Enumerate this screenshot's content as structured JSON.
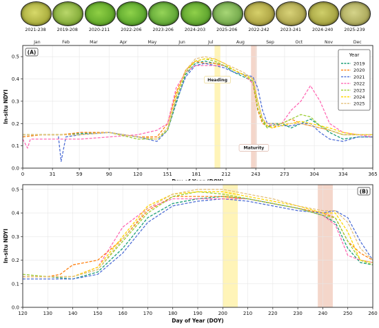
{
  "photos": [
    {
      "label": "2021-238",
      "c1": "#d7d96a",
      "c2": "#a6a93a"
    },
    {
      "label": "2019-208",
      "c1": "#b9d76a",
      "c2": "#7fa835"
    },
    {
      "label": "2020-211",
      "c1": "#8fcf45",
      "c2": "#5fa628"
    },
    {
      "label": "2022-206",
      "c1": "#8ed24a",
      "c2": "#58a42a"
    },
    {
      "label": "2023-206",
      "c1": "#95d458",
      "c2": "#5ba232"
    },
    {
      "label": "2024-203",
      "c1": "#8fd04a",
      "c2": "#5aa02c"
    },
    {
      "label": "2025-206",
      "c1": "#a7d676",
      "c2": "#6fa548"
    },
    {
      "label": "2022-242",
      "c1": "#d6d06a",
      "c2": "#a9a040"
    },
    {
      "label": "2023-241",
      "c1": "#d8d278",
      "c2": "#aaa24a"
    },
    {
      "label": "2024-240",
      "c1": "#cfcf6a",
      "c2": "#a3a03e"
    },
    {
      "label": "2025-239",
      "c1": "#d5d48a",
      "c2": "#a9a658"
    }
  ],
  "colors": {
    "2019": "#1b9e77",
    "2020": "#ff7f0e",
    "2021": "#4f6fd6",
    "2022": "#ff69b4",
    "2023": "#9acd32",
    "2024": "#ffd700",
    "2025": "#e5c07b"
  },
  "chart_data": [
    {
      "type": "line",
      "panel_label": "(A)",
      "xlabel": "Day of Year (DOY)",
      "ylabel": "In-situ NDYI",
      "xlim": [
        0,
        365
      ],
      "ylim": [
        0.0,
        0.55
      ],
      "x_ticks": [
        0,
        31,
        59,
        90,
        120,
        151,
        181,
        212,
        243,
        273,
        304,
        334,
        365
      ],
      "y_ticks": [
        0.0,
        0.1,
        0.2,
        0.3,
        0.4,
        0.5
      ],
      "months": [
        {
          "label": "Jan",
          "doy": 15
        },
        {
          "label": "Feb",
          "doy": 45
        },
        {
          "label": "Mar",
          "doy": 74
        },
        {
          "label": "Apr",
          "doy": 105
        },
        {
          "label": "May",
          "doy": 135
        },
        {
          "label": "Jun",
          "doy": 166
        },
        {
          "label": "Jul",
          "doy": 196
        },
        {
          "label": "Aug",
          "doy": 227
        },
        {
          "label": "Sep",
          "doy": 258
        },
        {
          "label": "Oct",
          "doy": 288
        },
        {
          "label": "Nov",
          "doy": 319
        },
        {
          "label": "Dec",
          "doy": 349
        }
      ],
      "legend_title": "Year",
      "legend_position": "top-right",
      "bands": [
        {
          "label": "Heading",
          "from": 200,
          "to": 206,
          "color": "#fff3b0",
          "label_y": 0.39
        },
        {
          "label": "Maturity",
          "from": 238,
          "to": 244,
          "color": "#f3d1c4",
          "label_y": 0.085
        }
      ],
      "series": [
        {
          "name": "2019",
          "x": [
            0,
            20,
            40,
            60,
            90,
            120,
            140,
            151,
            160,
            170,
            180,
            190,
            200,
            210,
            220,
            230,
            240,
            245,
            250,
            255,
            260,
            270,
            280,
            290,
            300,
            310,
            320,
            334,
            350,
            365
          ],
          "y": [
            0.15,
            0.15,
            0.15,
            0.155,
            0.16,
            0.14,
            0.13,
            0.17,
            0.29,
            0.42,
            0.47,
            0.48,
            0.47,
            0.46,
            0.43,
            0.41,
            0.39,
            0.3,
            0.22,
            0.18,
            0.2,
            0.2,
            0.18,
            0.2,
            0.22,
            0.19,
            0.16,
            0.13,
            0.14,
            0.14
          ]
        },
        {
          "name": "2020",
          "x": [
            0,
            20,
            40,
            60,
            90,
            120,
            140,
            151,
            160,
            170,
            180,
            190,
            200,
            210,
            220,
            230,
            240,
            245,
            250,
            255,
            260,
            270,
            280,
            290,
            300,
            310,
            320,
            334,
            350,
            365
          ],
          "y": [
            0.14,
            0.15,
            0.15,
            0.16,
            0.16,
            0.14,
            0.14,
            0.2,
            0.34,
            0.44,
            0.48,
            0.47,
            0.47,
            0.46,
            0.44,
            0.42,
            0.38,
            0.26,
            0.2,
            0.19,
            0.18,
            0.2,
            0.22,
            0.2,
            0.19,
            0.18,
            0.17,
            0.15,
            0.15,
            0.15
          ]
        },
        {
          "name": "2021",
          "x": [
            0,
            20,
            37,
            40,
            45,
            60,
            90,
            120,
            140,
            151,
            160,
            170,
            180,
            190,
            200,
            210,
            220,
            230,
            240,
            245,
            250,
            255,
            260,
            270,
            280,
            290,
            300,
            310,
            320,
            334,
            350,
            365
          ],
          "y": [
            0.15,
            0.15,
            0.15,
            0.03,
            0.14,
            0.15,
            0.16,
            0.14,
            0.12,
            0.17,
            0.3,
            0.41,
            0.46,
            0.47,
            0.46,
            0.45,
            0.43,
            0.42,
            0.41,
            0.36,
            0.26,
            0.2,
            0.2,
            0.19,
            0.19,
            0.2,
            0.2,
            0.16,
            0.13,
            0.12,
            0.14,
            0.14
          ]
        },
        {
          "name": "2022",
          "x": [
            0,
            5,
            8,
            15,
            30,
            45,
            60,
            90,
            120,
            140,
            151,
            160,
            170,
            180,
            190,
            200,
            210,
            220,
            230,
            240,
            245,
            250,
            255,
            260,
            270,
            280,
            290,
            300,
            310,
            320,
            334,
            350,
            365
          ],
          "y": [
            0.13,
            0.09,
            0.13,
            0.13,
            0.13,
            0.13,
            0.13,
            0.14,
            0.15,
            0.17,
            0.2,
            0.36,
            0.43,
            0.46,
            0.46,
            0.46,
            0.46,
            0.44,
            0.42,
            0.38,
            0.3,
            0.22,
            0.2,
            0.19,
            0.2,
            0.26,
            0.3,
            0.37,
            0.3,
            0.2,
            0.16,
            0.15,
            0.14
          ]
        },
        {
          "name": "2023",
          "x": [
            0,
            20,
            40,
            60,
            90,
            120,
            140,
            151,
            160,
            170,
            180,
            190,
            200,
            210,
            220,
            230,
            240,
            245,
            250,
            255,
            260,
            270,
            280,
            290,
            300,
            310,
            320,
            334,
            350,
            365
          ],
          "y": [
            0.15,
            0.15,
            0.15,
            0.15,
            0.16,
            0.13,
            0.13,
            0.17,
            0.31,
            0.43,
            0.48,
            0.49,
            0.48,
            0.46,
            0.44,
            0.42,
            0.39,
            0.27,
            0.21,
            0.18,
            0.19,
            0.2,
            0.22,
            0.24,
            0.23,
            0.19,
            0.17,
            0.15,
            0.15,
            0.15
          ]
        },
        {
          "name": "2024",
          "x": [
            0,
            20,
            40,
            60,
            90,
            120,
            140,
            151,
            160,
            170,
            180,
            190,
            200,
            210,
            220,
            230,
            240,
            245,
            250,
            255,
            260,
            270,
            280,
            290,
            300,
            310,
            320,
            334,
            350,
            365
          ],
          "y": [
            0.15,
            0.15,
            0.15,
            0.15,
            0.16,
            0.14,
            0.13,
            0.18,
            0.33,
            0.44,
            0.48,
            0.49,
            0.49,
            0.47,
            0.44,
            0.42,
            0.4,
            0.3,
            0.22,
            0.19,
            0.18,
            0.19,
            0.2,
            0.21,
            0.2,
            0.19,
            0.18,
            0.16,
            0.15,
            0.15
          ]
        },
        {
          "name": "2025",
          "x": [
            0,
            20,
            40,
            60,
            90,
            120,
            140,
            151,
            160,
            170,
            180,
            190,
            200,
            210,
            220,
            230,
            240,
            245,
            250,
            255,
            260,
            270,
            280,
            290,
            300,
            310,
            320,
            334,
            350,
            365
          ],
          "y": [
            0.15,
            0.15,
            0.15,
            0.15,
            0.16,
            0.14,
            0.13,
            0.18,
            0.32,
            0.44,
            0.49,
            0.5,
            0.49,
            0.47,
            0.45,
            0.43,
            0.4,
            0.3,
            0.22,
            0.2,
            0.2,
            0.2,
            0.2,
            0.2,
            0.19,
            0.18,
            0.17,
            0.15,
            0.15,
            0.15
          ]
        }
      ]
    },
    {
      "type": "line",
      "panel_label": "(B)",
      "xlabel": "Day of Year (DOY)",
      "ylabel": "In-situ NDYI",
      "xlim": [
        120,
        260
      ],
      "ylim": [
        0.0,
        0.52
      ],
      "x_ticks": [
        120,
        130,
        140,
        150,
        160,
        170,
        180,
        190,
        200,
        210,
        220,
        230,
        240,
        250,
        260
      ],
      "y_ticks": [
        0.0,
        0.1,
        0.2,
        0.3,
        0.4,
        0.5
      ],
      "bands": [
        {
          "from": 200,
          "to": 206,
          "color": "#fff3b0"
        },
        {
          "from": 238,
          "to": 244,
          "color": "#f3d1c4"
        }
      ],
      "series": [
        {
          "name": "2019",
          "x": [
            120,
            130,
            140,
            150,
            160,
            170,
            180,
            190,
            200,
            210,
            220,
            230,
            240,
            245,
            250,
            255,
            260
          ],
          "y": [
            0.13,
            0.13,
            0.12,
            0.15,
            0.25,
            0.38,
            0.44,
            0.46,
            0.47,
            0.46,
            0.44,
            0.42,
            0.39,
            0.36,
            0.25,
            0.19,
            0.18
          ]
        },
        {
          "name": "2020",
          "x": [
            120,
            130,
            135,
            140,
            145,
            150,
            160,
            170,
            180,
            190,
            200,
            210,
            220,
            230,
            240,
            245,
            250,
            255,
            260
          ],
          "y": [
            0.13,
            0.13,
            0.14,
            0.18,
            0.19,
            0.2,
            0.29,
            0.41,
            0.47,
            0.47,
            0.47,
            0.46,
            0.44,
            0.42,
            0.4,
            0.38,
            0.28,
            0.23,
            0.2
          ]
        },
        {
          "name": "2021",
          "x": [
            120,
            130,
            140,
            150,
            160,
            170,
            180,
            190,
            200,
            210,
            220,
            230,
            240,
            245,
            250,
            255,
            260
          ],
          "y": [
            0.12,
            0.12,
            0.12,
            0.14,
            0.23,
            0.36,
            0.43,
            0.45,
            0.46,
            0.45,
            0.43,
            0.41,
            0.4,
            0.41,
            0.38,
            0.28,
            0.2
          ]
        },
        {
          "name": "2022",
          "x": [
            120,
            130,
            140,
            150,
            160,
            170,
            180,
            190,
            200,
            210,
            220,
            230,
            240,
            245,
            250,
            255,
            260
          ],
          "y": [
            0.13,
            0.13,
            0.13,
            0.17,
            0.34,
            0.42,
            0.46,
            0.46,
            0.46,
            0.46,
            0.44,
            0.42,
            0.39,
            0.35,
            0.22,
            0.2,
            0.19
          ]
        },
        {
          "name": "2023",
          "x": [
            120,
            130,
            140,
            150,
            160,
            170,
            180,
            190,
            200,
            210,
            220,
            230,
            240,
            245,
            250,
            255,
            260
          ],
          "y": [
            0.14,
            0.13,
            0.13,
            0.16,
            0.28,
            0.4,
            0.47,
            0.49,
            0.48,
            0.46,
            0.44,
            0.42,
            0.39,
            0.38,
            0.28,
            0.2,
            0.18
          ]
        },
        {
          "name": "2024",
          "x": [
            120,
            130,
            140,
            150,
            160,
            170,
            180,
            190,
            200,
            210,
            220,
            230,
            240,
            245,
            250,
            255,
            260
          ],
          "y": [
            0.13,
            0.13,
            0.13,
            0.17,
            0.3,
            0.43,
            0.48,
            0.49,
            0.49,
            0.47,
            0.45,
            0.43,
            0.4,
            0.4,
            0.32,
            0.2,
            0.19
          ]
        },
        {
          "name": "2025",
          "x": [
            120,
            130,
            140,
            150,
            160,
            170,
            180,
            190,
            200,
            210,
            220,
            230,
            240,
            245,
            250,
            255,
            260
          ],
          "y": [
            0.13,
            0.13,
            0.13,
            0.16,
            0.29,
            0.42,
            0.48,
            0.5,
            0.5,
            0.48,
            0.46,
            0.43,
            0.41,
            0.41,
            0.36,
            0.25,
            0.2
          ]
        }
      ]
    }
  ]
}
